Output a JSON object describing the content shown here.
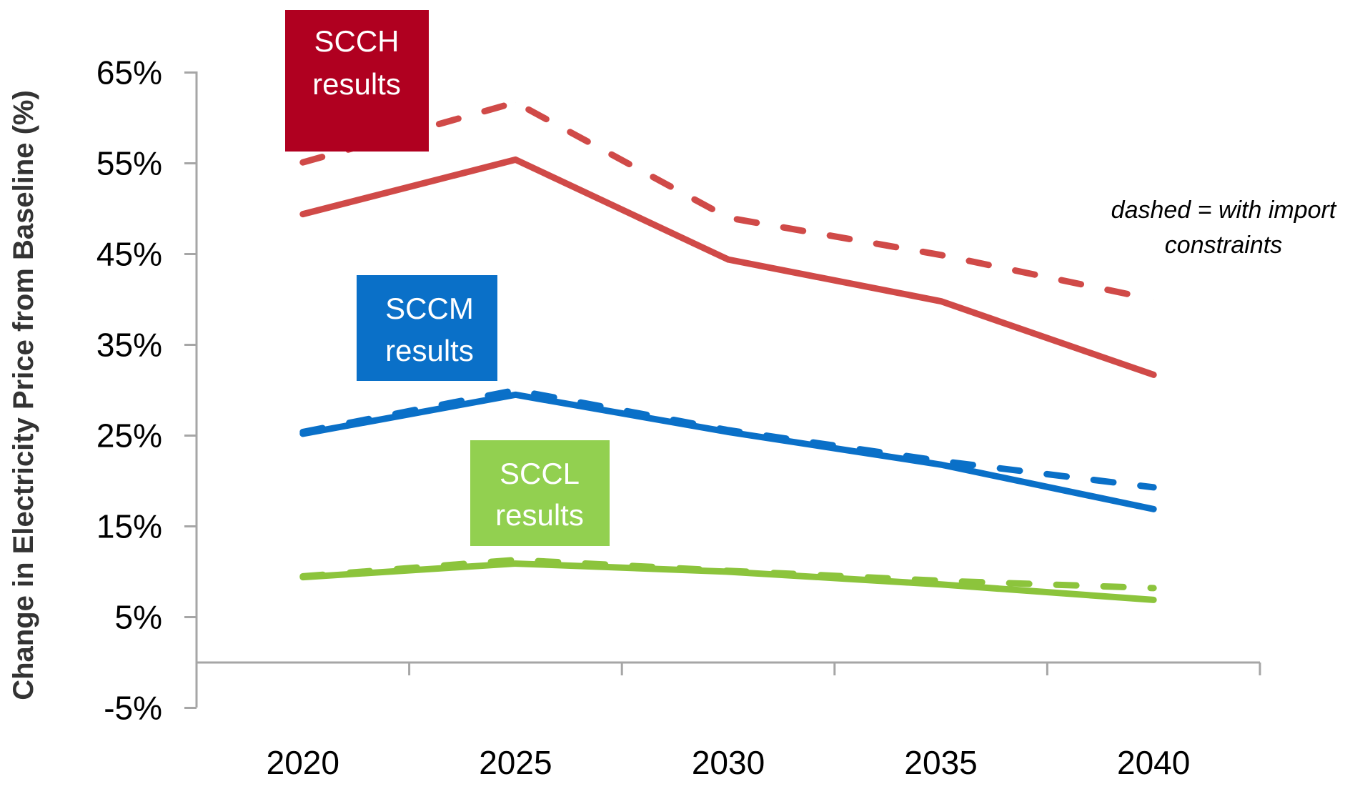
{
  "chart_data": {
    "type": "line",
    "title": "",
    "xlabel": "",
    "ylabel": "Change in Electricity Price from Baseline (%)",
    "categories": [
      "2020",
      "2025",
      "2030",
      "2035",
      "2040"
    ],
    "y_ticks": [
      "65%",
      "55%",
      "45%",
      "35%",
      "25%",
      "15%",
      "5%",
      "-5%"
    ],
    "y_tick_values": [
      65,
      55,
      45,
      35,
      25,
      15,
      5,
      -5
    ],
    "ylim": [
      -5,
      65
    ],
    "grid": false,
    "annotation": {
      "line1": "dashed = with import",
      "line2": "constraints"
    },
    "series": [
      {
        "name": "SCCH",
        "style": "solid",
        "color": "#d04a48",
        "values": [
          49.4,
          55.4,
          44.4,
          39.8,
          31.7
        ]
      },
      {
        "name": "SCCH (with import constraints)",
        "style": "dashed",
        "color": "#d04a48",
        "values": [
          55.1,
          61.7,
          49.0,
          44.9,
          40.0
        ]
      },
      {
        "name": "SCCM",
        "style": "solid",
        "color": "#0a70c8",
        "values": [
          25.2,
          29.5,
          25.4,
          21.8,
          16.9
        ]
      },
      {
        "name": "SCCM (with import constraints)",
        "style": "dashed",
        "color": "#0a70c8",
        "values": [
          25.4,
          30.0,
          25.6,
          22.2,
          19.3
        ]
      },
      {
        "name": "SCCL",
        "style": "solid",
        "color": "#8cc43c",
        "values": [
          9.4,
          10.9,
          10.0,
          8.6,
          6.9
        ]
      },
      {
        "name": "SCCL (with import constraints)",
        "style": "dashed",
        "color": "#8cc43c",
        "values": [
          9.5,
          11.3,
          10.1,
          9.0,
          8.2
        ]
      }
    ],
    "labels": [
      {
        "line1": "SCCH",
        "line2": "results",
        "color": "#b00020"
      },
      {
        "line1": "SCCM",
        "line2": "results",
        "color": "#0a70c8"
      },
      {
        "line1": "SCCL",
        "line2": "results",
        "color": "#92d050"
      }
    ]
  }
}
